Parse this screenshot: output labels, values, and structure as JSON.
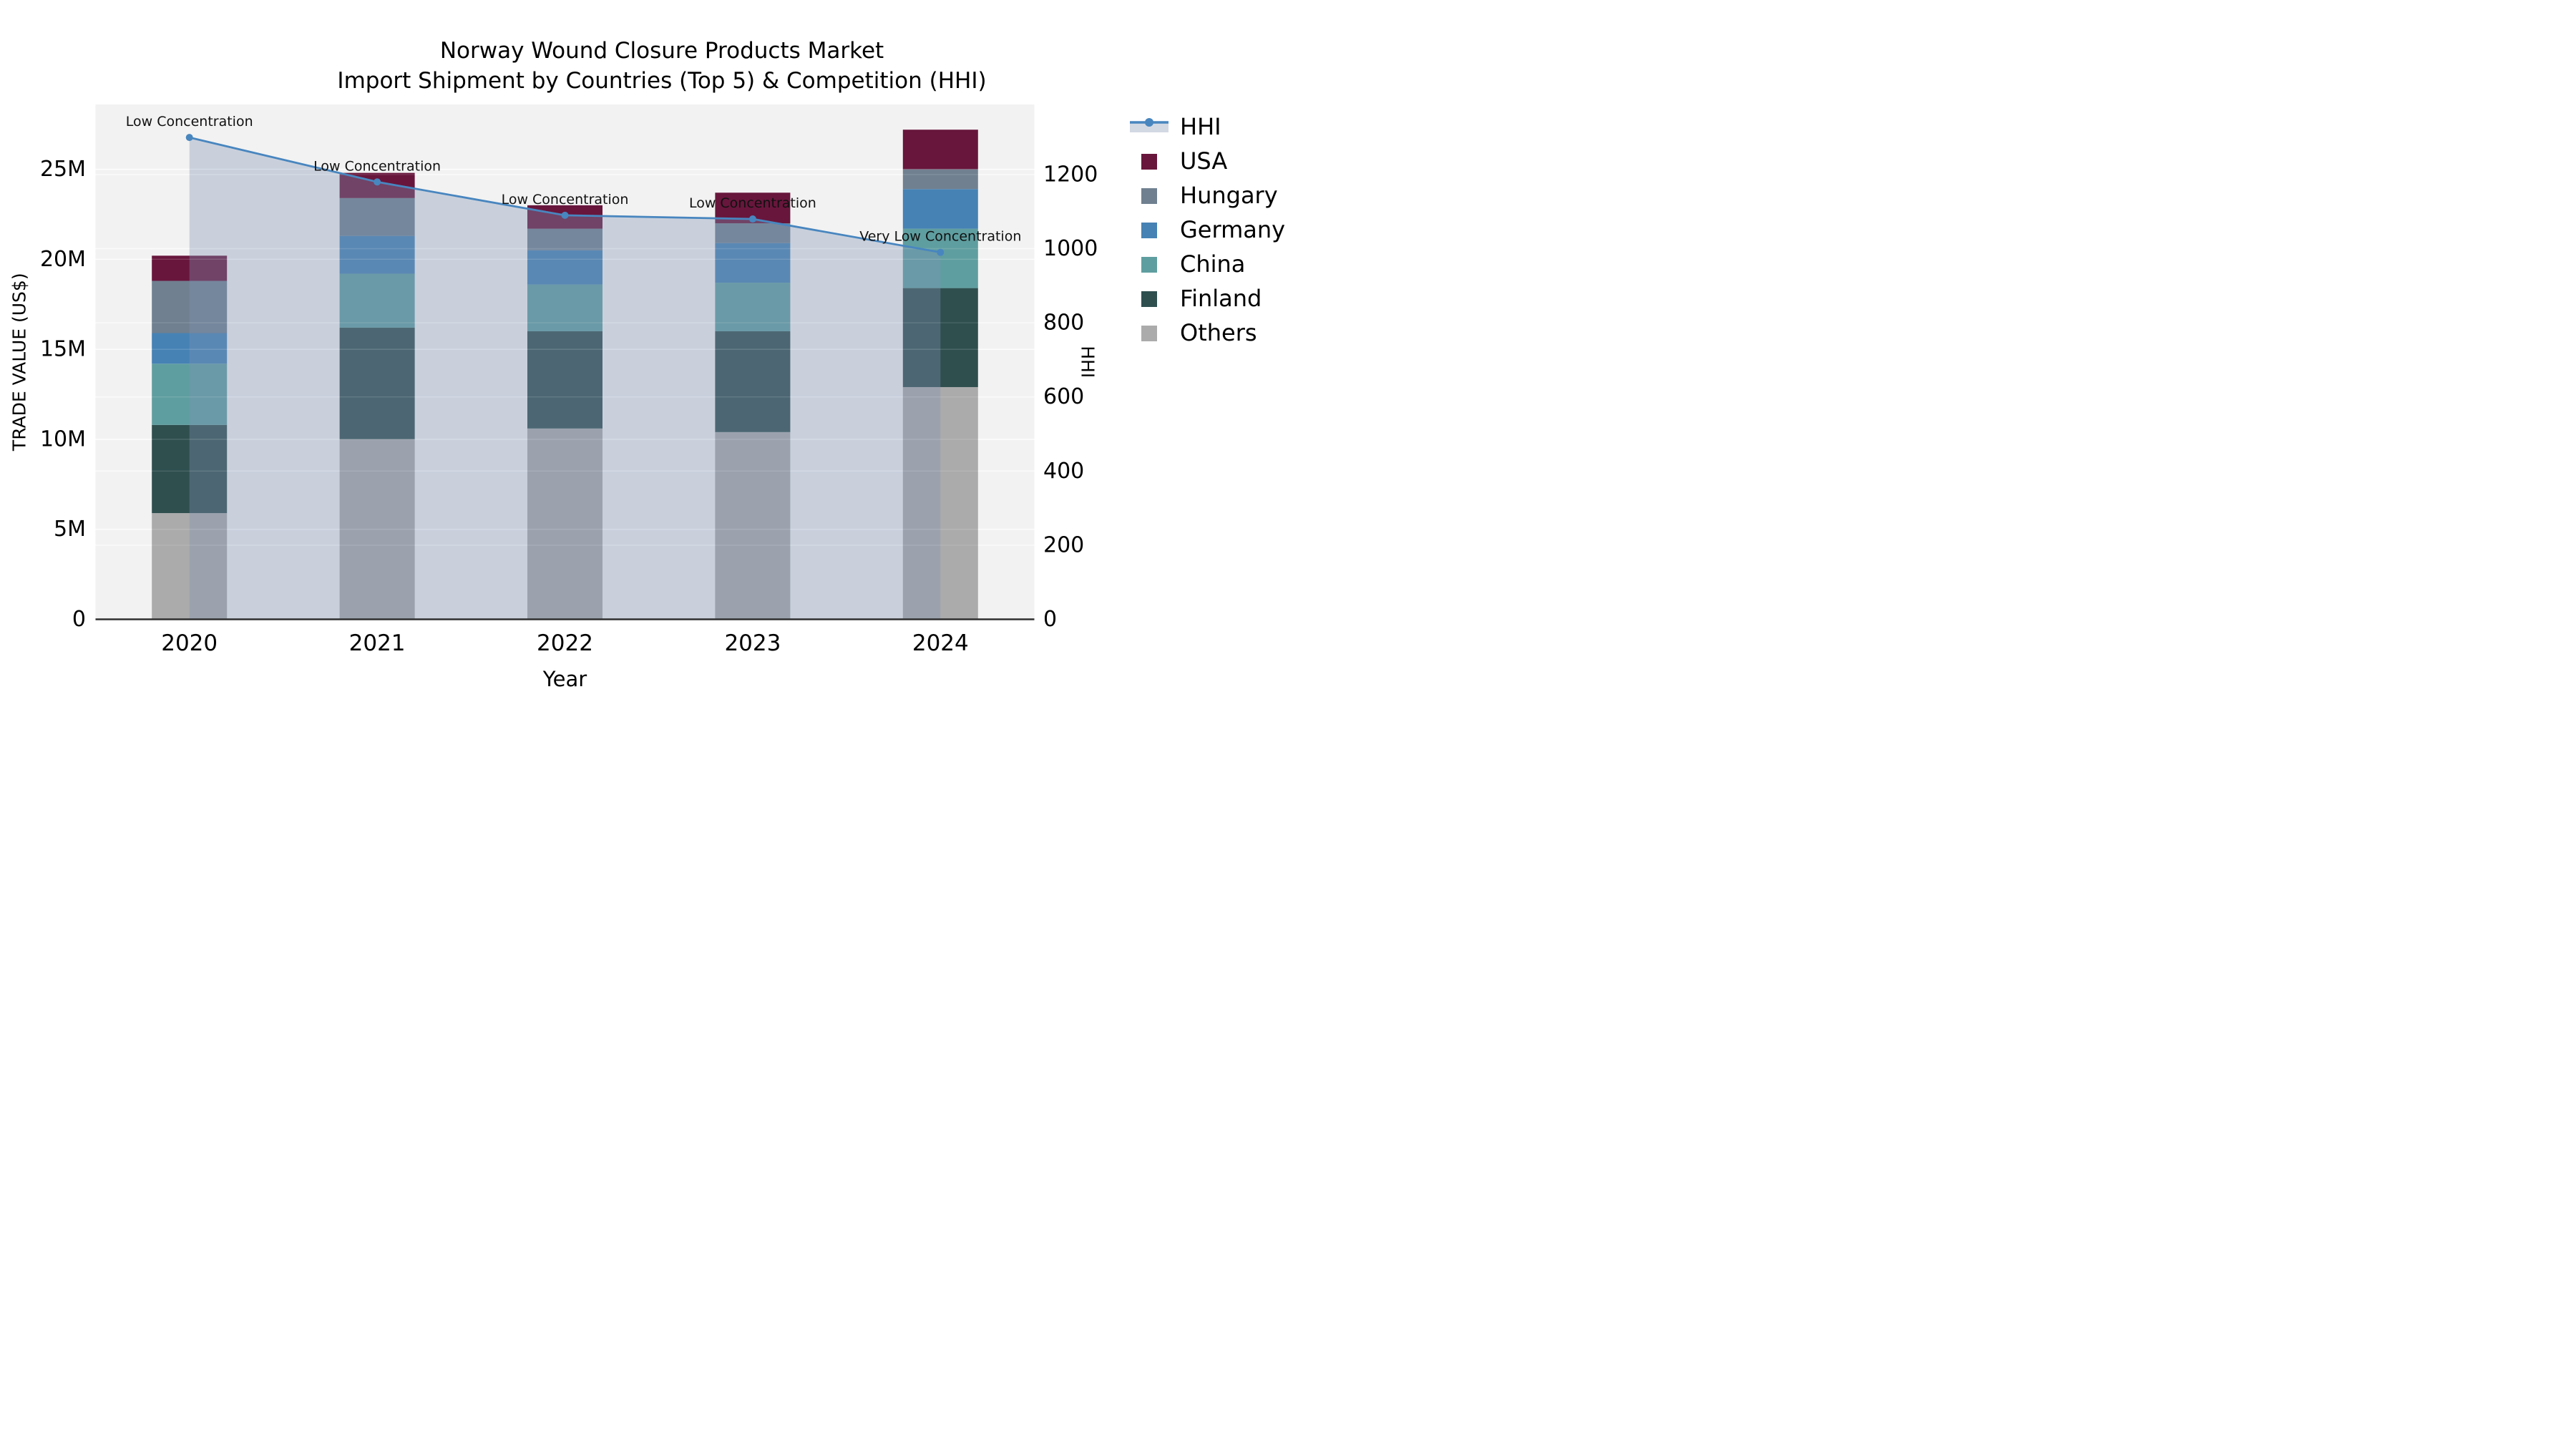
{
  "title": {
    "line1": "Norway Wound Closure Products Market",
    "line2": "Import Shipment by Countries (Top 5) & Competition (HHI)"
  },
  "chart_data": {
    "type": "combo-stacked-bar-line",
    "categories": [
      "2020",
      "2021",
      "2022",
      "2023",
      "2024"
    ],
    "value_unit": "M US$",
    "series": [
      {
        "name": "Others",
        "color": "#ababab",
        "values": [
          5.9,
          10.0,
          10.6,
          10.4,
          12.9
        ]
      },
      {
        "name": "Finland",
        "color": "#2f4f4f",
        "values": [
          4.9,
          6.2,
          5.4,
          5.6,
          5.5
        ]
      },
      {
        "name": "China",
        "color": "#5f9ea0",
        "values": [
          3.4,
          3.0,
          2.6,
          2.7,
          3.3
        ]
      },
      {
        "name": "Germany",
        "color": "#4682b4",
        "values": [
          1.7,
          2.1,
          1.9,
          2.2,
          2.2
        ]
      },
      {
        "name": "Hungary",
        "color": "#708090",
        "values": [
          2.9,
          2.1,
          1.2,
          1.1,
          1.1
        ]
      },
      {
        "name": "USA",
        "color": "#68163c",
        "values": [
          1.4,
          1.4,
          1.3,
          1.7,
          2.2
        ]
      }
    ],
    "bar_totals": [
      20.2,
      24.8,
      23.0,
      23.7,
      27.2
    ],
    "line_series": {
      "name": "HHI",
      "color": "#4886bf",
      "area_fill": "rgba(127,146,180,0.36)",
      "values": [
        1300,
        1180,
        1090,
        1080,
        990
      ]
    },
    "annotations": [
      {
        "category": "2020",
        "text": "Low Concentration"
      },
      {
        "category": "2021",
        "text": "Low Concentration"
      },
      {
        "category": "2022",
        "text": "Low Concentration"
      },
      {
        "category": "2023",
        "text": "Low Concentration"
      },
      {
        "category": "2024",
        "text": "Very Low Concentration"
      }
    ],
    "axis_left": {
      "label": "TRADE VALUE (US$)",
      "max": 28.6,
      "ticks": [
        {
          "v": 0,
          "label": "0"
        },
        {
          "v": 5,
          "label": "5M"
        },
        {
          "v": 10,
          "label": "10M"
        },
        {
          "v": 15,
          "label": "15M"
        },
        {
          "v": 20,
          "label": "20M"
        },
        {
          "v": 25,
          "label": "25M"
        }
      ]
    },
    "axis_right": {
      "label": "HHI",
      "max": 1389,
      "ticks": [
        {
          "v": 0,
          "label": "0"
        },
        {
          "v": 200,
          "label": "200"
        },
        {
          "v": 400,
          "label": "400"
        },
        {
          "v": 600,
          "label": "600"
        },
        {
          "v": 800,
          "label": "800"
        },
        {
          "v": 1000,
          "label": "1000"
        },
        {
          "v": 1200,
          "label": "1200"
        }
      ]
    },
    "axis_x": {
      "label": "Year"
    },
    "layout": {
      "grid": true,
      "plot_bg": "#f2f2f2",
      "legend_position": "right"
    }
  },
  "legend": {
    "items": [
      {
        "label": "HHI",
        "type": "line-area"
      },
      {
        "label": "USA",
        "type": "patch",
        "color": "#68163c"
      },
      {
        "label": "Hungary",
        "type": "patch",
        "color": "#708090"
      },
      {
        "label": "Germany",
        "type": "patch",
        "color": "#4682b4"
      },
      {
        "label": "China",
        "type": "patch",
        "color": "#5f9ea0"
      },
      {
        "label": "Finland",
        "type": "patch",
        "color": "#2f4f4f"
      },
      {
        "label": "Others",
        "type": "patch",
        "color": "#ababab"
      }
    ]
  }
}
